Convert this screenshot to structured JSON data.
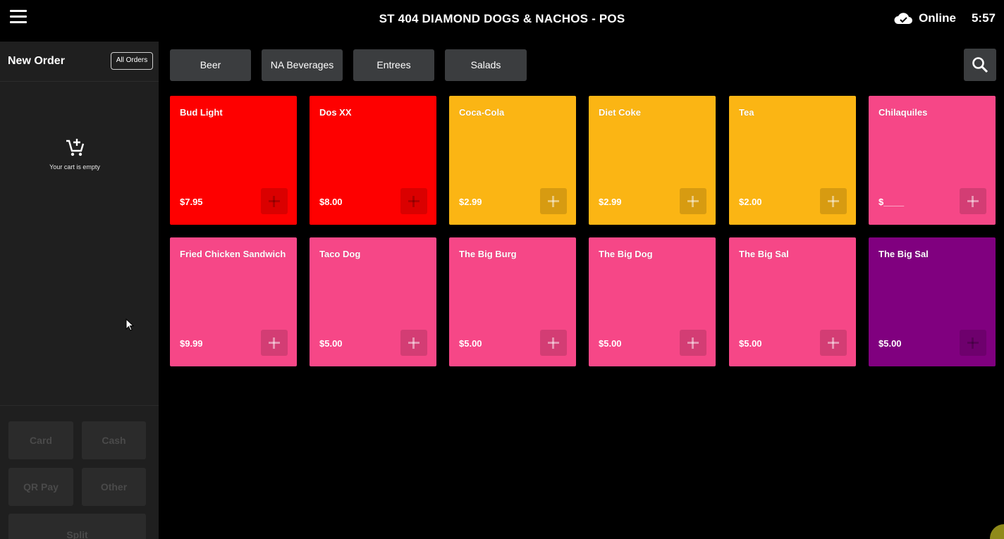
{
  "header": {
    "title": "ST 404 DIAMOND DOGS & NACHOS - POS",
    "status": "Online",
    "time": "5:57"
  },
  "sidebar": {
    "title": "New Order",
    "all_orders": "All Orders",
    "empty_text": "Your cart is empty",
    "payments": {
      "card": "Card",
      "cash": "Cash",
      "qr": "QR Pay",
      "other": "Other",
      "split": "Split"
    }
  },
  "categories": [
    "Beer",
    "NA Beverages",
    "Entrees",
    "Salads"
  ],
  "colors": {
    "beer": "#fe0000",
    "na_beverages": "#fbb514",
    "entrees": "#f64787",
    "salads": "#80007f"
  },
  "items": [
    {
      "name": "Bud Light",
      "price": "$7.95"
    },
    {
      "name": "Dos XX",
      "price": "$8.00"
    },
    {
      "name": "Coca-Cola",
      "price": "$2.99"
    },
    {
      "name": "Diet Coke",
      "price": "$2.99"
    },
    {
      "name": "Tea",
      "price": "$2.00"
    },
    {
      "name": "Chilaquiles",
      "price": "$____"
    },
    {
      "name": "Fried Chicken Sandwich",
      "price": "$9.99"
    },
    {
      "name": "Taco Dog",
      "price": "$5.00"
    },
    {
      "name": "The Big Burg",
      "price": "$5.00"
    },
    {
      "name": "The Big Dog",
      "price": "$5.00"
    },
    {
      "name": "The Big Sal",
      "price": "$5.00"
    },
    {
      "name": "The Big Sal",
      "price": "$5.00"
    }
  ]
}
